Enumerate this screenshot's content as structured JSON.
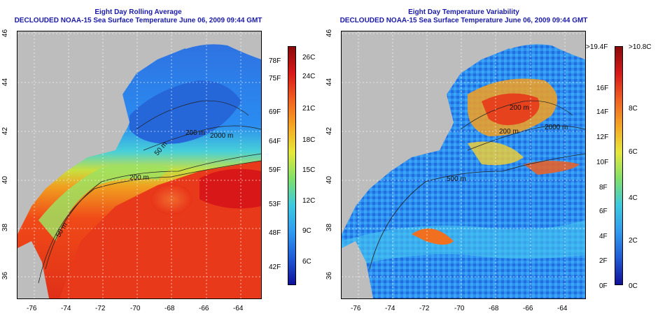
{
  "left_panel": {
    "title": "Eight Day Rolling Average",
    "subtitle": "DECLOUDED NOAA-15 Sea Surface Temperature June 06, 2009 09:44 GMT",
    "lon_ticks": [
      "-76",
      "-74",
      "-72",
      "-70",
      "-68",
      "-66",
      "-64"
    ],
    "lat_ticks": [
      "46",
      "44",
      "42",
      "40",
      "38",
      "36"
    ],
    "contour_labels": [
      "2000 m",
      "200 m",
      "50 m",
      "200 m",
      "50 m"
    ],
    "colorbar": {
      "celsius": [
        "26C",
        "24C",
        "21C",
        "18C",
        "15C",
        "12C",
        "9C",
        "6C"
      ],
      "fahrenheit": [
        "78F",
        "75F",
        "69F",
        "64F",
        "59F",
        "53F",
        "48F",
        "42F"
      ]
    }
  },
  "right_panel": {
    "title": "Eight Day Temperature Variability",
    "subtitle": "DECLOUDED NOAA-15 Sea Surface Temperature June 06, 2009 09:44 GMT",
    "lon_ticks": [
      "-76",
      "-74",
      "-72",
      "-70",
      "-68",
      "-66",
      "-64"
    ],
    "lat_ticks": [
      "46",
      "44",
      "42",
      "40",
      "38",
      "36"
    ],
    "contour_labels": [
      "200 m",
      "2000 m",
      "200 m",
      "500 m"
    ],
    "colorbar": {
      "celsius": [
        ">10.8C",
        "8C",
        "6C",
        "4C",
        "2C",
        "0C"
      ],
      "fahrenheit": [
        ">19.4F",
        "16F",
        "14F",
        "12F",
        "10F",
        "8F",
        "6F",
        "4F",
        "2F",
        "0F"
      ]
    }
  },
  "colors": {
    "land": "#bdbdbd",
    "title": "#1a1aa6",
    "sst_scale": [
      "#10109a",
      "#1f5bd6",
      "#2f9bf0",
      "#3cc9e0",
      "#7fe06a",
      "#e6e83a",
      "#f5a623",
      "#f06020",
      "#d81818",
      "#8a0a0a"
    ]
  }
}
